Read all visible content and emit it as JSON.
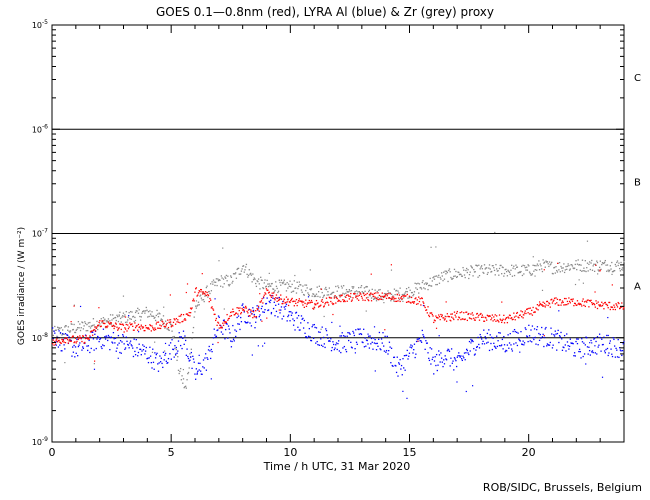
{
  "chart_data": {
    "type": "scatter",
    "title": "GOES 0.1—0.8nm (red), LYRA Al (blue) & Zr (grey) proxy",
    "xlabel": "Time / h UTC, 31 Mar 2020",
    "ylabel": "GOES irradiance / (W m⁻²)",
    "xlim": [
      0,
      24
    ],
    "ylim_log10": [
      -9,
      -5
    ],
    "y_scale": "log",
    "x_ticks": [
      0,
      5,
      10,
      15,
      20
    ],
    "x_tick_labels": [
      "0",
      "5",
      "10",
      "15",
      "20"
    ],
    "y_ticks_log10": [
      -9,
      -8,
      -7,
      -6,
      -5
    ],
    "y_tick_labels": [
      {
        "base": "10",
        "exp": "-9"
      },
      {
        "base": "10",
        "exp": "-8"
      },
      {
        "base": "10",
        "exp": "-7"
      },
      {
        "base": "10",
        "exp": "-6"
      },
      {
        "base": "10",
        "exp": "-5"
      }
    ],
    "flare_class_lines_log10": [
      -8,
      -7,
      -6
    ],
    "flare_classes": [
      {
        "label": "A",
        "log10": -7.5
      },
      {
        "label": "B",
        "log10": -6.5
      },
      {
        "label": "C",
        "log10": -5.5
      }
    ],
    "series": [
      {
        "name": "GOES 0.1-0.8nm",
        "color": "#ff0000",
        "x": [
          0,
          0.5,
          1,
          1.5,
          2,
          2.5,
          3,
          3.5,
          4,
          4.5,
          5,
          5.5,
          5.8,
          6,
          6.5,
          7,
          7.5,
          8,
          8.5,
          9,
          9.5,
          10,
          11,
          12,
          13,
          14,
          15,
          15.5,
          16,
          17,
          18,
          19,
          20,
          21,
          22,
          23,
          24
        ],
        "log10": [
          -8.05,
          -8.0,
          -8.02,
          -8.0,
          -7.85,
          -7.88,
          -7.9,
          -7.88,
          -7.9,
          -7.88,
          -7.85,
          -7.8,
          -7.75,
          -7.55,
          -7.58,
          -7.9,
          -7.75,
          -7.72,
          -7.78,
          -7.55,
          -7.62,
          -7.65,
          -7.68,
          -7.62,
          -7.6,
          -7.6,
          -7.62,
          -7.65,
          -7.82,
          -7.78,
          -7.8,
          -7.82,
          -7.75,
          -7.65,
          -7.65,
          -7.68,
          -7.7
        ]
      },
      {
        "name": "LYRA Al proxy",
        "color": "#0000ff",
        "x": [
          0,
          0.5,
          1,
          1.5,
          2,
          3,
          3.5,
          4,
          4.5,
          5,
          5.5,
          6,
          6.5,
          7,
          7.5,
          8,
          8.5,
          9,
          9.5,
          10,
          11,
          12,
          13,
          14,
          14.5,
          15,
          15.5,
          16,
          16.5,
          17,
          17.5,
          18,
          19,
          20,
          21,
          22,
          23,
          24
        ],
        "log10": [
          -7.95,
          -8.05,
          -8.1,
          -8.05,
          -8.0,
          -8.05,
          -8.1,
          -8.15,
          -8.25,
          -8.1,
          -8.0,
          -8.35,
          -8.2,
          -7.85,
          -8.0,
          -7.75,
          -7.8,
          -7.65,
          -7.7,
          -7.8,
          -7.95,
          -8.05,
          -8.0,
          -8.05,
          -8.3,
          -8.15,
          -8.0,
          -8.25,
          -8.15,
          -8.25,
          -8.1,
          -8.0,
          -8.05,
          -7.95,
          -8.0,
          -8.1,
          -8.05,
          -8.1
        ]
      },
      {
        "name": "LYRA Zr proxy",
        "color": "#888888",
        "x": [
          0,
          1,
          2,
          3,
          4,
          4.5,
          5,
          5.3,
          5.6,
          6,
          6.5,
          7,
          7.5,
          8,
          8.5,
          9,
          10,
          11,
          12,
          13,
          14,
          15,
          16,
          16.5,
          17,
          18,
          19,
          20,
          20.5,
          21,
          22,
          23,
          24
        ],
        "log10": [
          -7.95,
          -7.9,
          -7.85,
          -7.8,
          -7.75,
          -7.8,
          -7.9,
          -8.3,
          -8.5,
          -7.7,
          -7.55,
          -7.45,
          -7.45,
          -7.3,
          -7.45,
          -7.5,
          -7.5,
          -7.55,
          -7.55,
          -7.55,
          -7.6,
          -7.55,
          -7.45,
          -7.4,
          -7.38,
          -7.35,
          -7.35,
          -7.35,
          -7.3,
          -7.32,
          -7.3,
          -7.3,
          -7.3
        ]
      }
    ]
  },
  "footer": "ROB/SIDC, Brussels, Belgium"
}
